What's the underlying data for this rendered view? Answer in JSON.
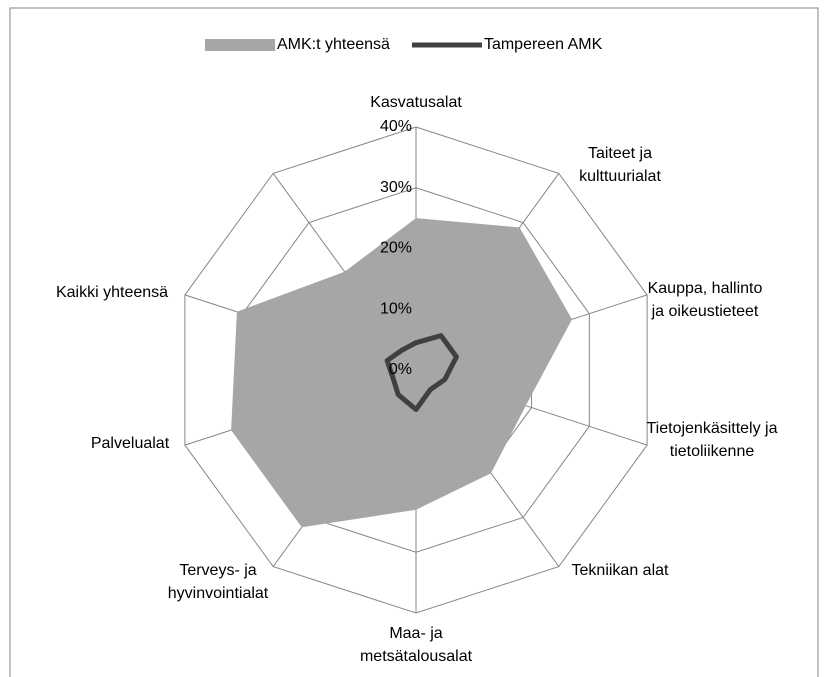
{
  "chart_data": {
    "type": "radar",
    "categories": [
      "Kasvatusalat",
      "Taiteet ja kulttuurialat",
      "Kauppa, hallinto ja oikeustieteet",
      "Tietojenkäsittely ja tietoliikenne",
      "Tekniikan alat",
      "Maa- ja metsätalousalat",
      "Terveys- ja hyvinvointialat",
      "Palvelualat",
      "Kaikki yhteensä",
      null
    ],
    "series": [
      {
        "name": "AMK:t yhteensä",
        "color": "#a6a6a6",
        "values": [
          25,
          29,
          27,
          19,
          21,
          23,
          32,
          32,
          31,
          20
        ]
      },
      {
        "name": "Tampereen AMK",
        "color": "#404040",
        "values": [
          4.5,
          7,
          7,
          5,
          4,
          6.5,
          5,
          4,
          5,
          4
        ]
      }
    ],
    "ylim": [
      0,
      40
    ],
    "yticks": [
      {
        "value": 0,
        "label": "0%"
      },
      {
        "value": 10,
        "label": "10%"
      },
      {
        "value": 20,
        "label": "20%"
      },
      {
        "value": 30,
        "label": "30%"
      },
      {
        "value": 40,
        "label": "40%"
      }
    ],
    "grid": true,
    "legend": "top"
  }
}
